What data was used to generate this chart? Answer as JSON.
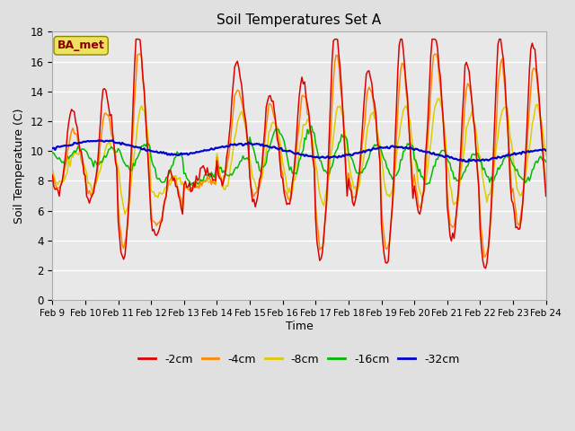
{
  "title": "Soil Temperatures Set A",
  "xlabel": "Time",
  "ylabel": "Soil Temperature (C)",
  "annotation": "BA_met",
  "ylim": [
    0,
    18
  ],
  "series_colors": {
    "-2cm": "#dd0000",
    "-4cm": "#ff8800",
    "-8cm": "#ddcc00",
    "-16cm": "#00bb00",
    "-32cm": "#0000cc"
  },
  "xtick_labels": [
    "Feb 9",
    "Feb 10",
    "Feb 11",
    "Feb 12",
    "Feb 13",
    "Feb 14",
    "Feb 15",
    "Feb 16",
    "Feb 17",
    "Feb 18",
    "Feb 19",
    "Feb 20",
    "Feb 21",
    "Feb 22",
    "Feb 23",
    "Feb 24"
  ],
  "ytick_labels": [
    0,
    2,
    4,
    6,
    8,
    10,
    12,
    14,
    16,
    18
  ],
  "linewidth": 1.1,
  "fig_bg": "#e0e0e0",
  "plot_bg": "#e8e8e8"
}
